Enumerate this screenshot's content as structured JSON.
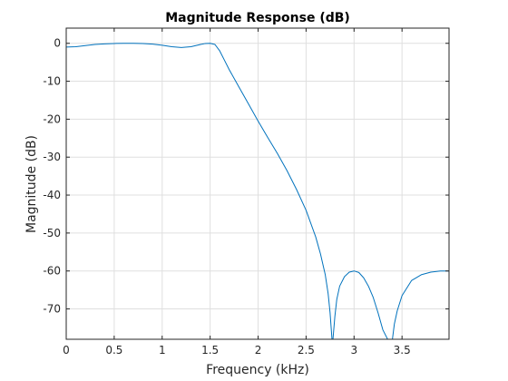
{
  "chart_data": {
    "type": "line",
    "title": "Magnitude Response (dB)",
    "xlabel": "Frequency (kHz)",
    "ylabel": "Magnitude (dB)",
    "xlim": [
      0,
      3.99
    ],
    "ylim": [
      -78,
      4
    ],
    "grid": true,
    "xticks": [
      {
        "value": 0,
        "label": "0"
      },
      {
        "value": 0.5,
        "label": "0.5"
      },
      {
        "value": 1,
        "label": "1"
      },
      {
        "value": 1.5,
        "label": "1.5"
      },
      {
        "value": 2,
        "label": "2"
      },
      {
        "value": 2.5,
        "label": "2.5"
      },
      {
        "value": 3,
        "label": "3"
      },
      {
        "value": 3.5,
        "label": "3.5"
      }
    ],
    "yticks": [
      {
        "value": 0,
        "label": "0"
      },
      {
        "value": -10,
        "label": "-10"
      },
      {
        "value": -20,
        "label": "-20"
      },
      {
        "value": -30,
        "label": "-30"
      },
      {
        "value": -40,
        "label": "-40"
      },
      {
        "value": -50,
        "label": "-50"
      },
      {
        "value": -60,
        "label": "-60"
      },
      {
        "value": -70,
        "label": "-70"
      }
    ],
    "series": [
      {
        "color": "#0072bd",
        "x": [
          0,
          0.1,
          0.2,
          0.3,
          0.4,
          0.5,
          0.6,
          0.7,
          0.8,
          0.9,
          1.0,
          1.1,
          1.2,
          1.3,
          1.4,
          1.45,
          1.5,
          1.55,
          1.6,
          1.65,
          1.7,
          1.8,
          1.9,
          2.0,
          2.1,
          2.2,
          2.3,
          2.4,
          2.5,
          2.6,
          2.65,
          2.7,
          2.73,
          2.75,
          2.77,
          2.78,
          2.8,
          2.82,
          2.85,
          2.9,
          2.95,
          3.0,
          3.05,
          3.1,
          3.15,
          3.2,
          3.25,
          3.3,
          3.35,
          3.38,
          3.4,
          3.42,
          3.45,
          3.5,
          3.6,
          3.7,
          3.8,
          3.9,
          3.99
        ],
        "y": [
          -1.0,
          -0.9,
          -0.6,
          -0.3,
          -0.15,
          -0.05,
          0,
          0,
          -0.05,
          -0.2,
          -0.5,
          -0.9,
          -1.1,
          -0.9,
          -0.3,
          -0.05,
          0,
          -0.3,
          -2.0,
          -4.5,
          -7.0,
          -11.5,
          -16.0,
          -20.5,
          -24.8,
          -29.0,
          -33.5,
          -38.5,
          -44.0,
          -51.0,
          -55.5,
          -61.0,
          -66.0,
          -71.0,
          -78.0,
          -78.0,
          -72.0,
          -67.5,
          -64.0,
          -61.5,
          -60.3,
          -60.0,
          -60.4,
          -61.8,
          -64.0,
          -67.0,
          -71.0,
          -75.5,
          -78.0,
          -78.0,
          -78.0,
          -74.0,
          -70.5,
          -66.5,
          -62.5,
          -61.0,
          -60.3,
          -60.0,
          -60.0
        ]
      }
    ]
  }
}
